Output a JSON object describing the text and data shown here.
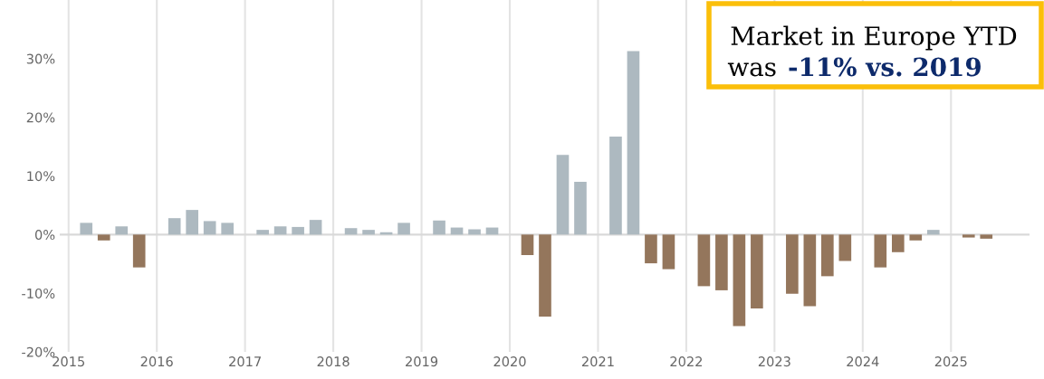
{
  "chart_data": {
    "type": "bar",
    "x": [
      2015.2,
      2015.4,
      2015.6,
      2015.8,
      2016.2,
      2016.4,
      2016.6,
      2016.8,
      2017.2,
      2017.4,
      2017.6,
      2017.8,
      2018.2,
      2018.4,
      2018.6,
      2018.8,
      2019.2,
      2019.4,
      2019.6,
      2019.8,
      2020.2,
      2020.4,
      2020.6,
      2020.8,
      2021.2,
      2021.4,
      2021.6,
      2021.8,
      2022.2,
      2022.4,
      2022.6,
      2022.8,
      2023.2,
      2023.4,
      2023.6,
      2023.8,
      2024.2,
      2024.4,
      2024.6,
      2024.8,
      2025.2,
      2025.4
    ],
    "values": [
      2.0,
      -1.0,
      1.4,
      -5.6,
      2.8,
      4.2,
      2.3,
      2.0,
      0.8,
      1.4,
      1.3,
      2.5,
      1.1,
      0.8,
      0.4,
      2.0,
      2.4,
      1.2,
      0.9,
      1.2,
      -3.5,
      -14.0,
      13.6,
      9.0,
      16.7,
      31.3,
      -4.9,
      -5.9,
      -8.8,
      -9.5,
      -15.6,
      -12.6,
      -10.1,
      -12.2,
      -7.1,
      -4.5,
      -5.6,
      -3.0,
      -1.0,
      0.8,
      -0.5,
      -0.7
    ],
    "colors": [
      "#adb9c0",
      "#94765c",
      "#adb9c0",
      "#94765c",
      "#adb9c0",
      "#adb9c0",
      "#adb9c0",
      "#adb9c0",
      "#adb9c0",
      "#adb9c0",
      "#adb9c0",
      "#adb9c0",
      "#adb9c0",
      "#adb9c0",
      "#adb9c0",
      "#adb9c0",
      "#adb9c0",
      "#adb9c0",
      "#adb9c0",
      "#adb9c0",
      "#94765c",
      "#94765c",
      "#adb9c0",
      "#adb9c0",
      "#adb9c0",
      "#adb9c0",
      "#94765c",
      "#94765c",
      "#94765c",
      "#94765c",
      "#94765c",
      "#94765c",
      "#94765c",
      "#94765c",
      "#94765c",
      "#94765c",
      "#94765c",
      "#94765c",
      "#94765c",
      "#adb9c0",
      "#94765c",
      "#94765c"
    ],
    "xlim": [
      2014.9,
      2025.89
    ],
    "xticks": [
      2015,
      2016,
      2017,
      2018,
      2019,
      2020,
      2021,
      2022,
      2023,
      2024,
      2025
    ],
    "ylim": [
      -20,
      40
    ],
    "yticks": [
      {
        "value": -20,
        "label": "-20%"
      },
      {
        "value": -10,
        "label": "-10%"
      },
      {
        "value": 0,
        "label": "0%"
      },
      {
        "value": 10,
        "label": "10%"
      },
      {
        "value": 20,
        "label": "20%"
      },
      {
        "value": 30,
        "label": "30%"
      }
    ],
    "ref_lines": [
      {
        "axis": "y",
        "value": 0,
        "color": "#d9d9d9"
      }
    ],
    "grid": "x",
    "annotations": [
      "Market in Europe YTD",
      "was",
      "-11% vs. 2019"
    ]
  }
}
